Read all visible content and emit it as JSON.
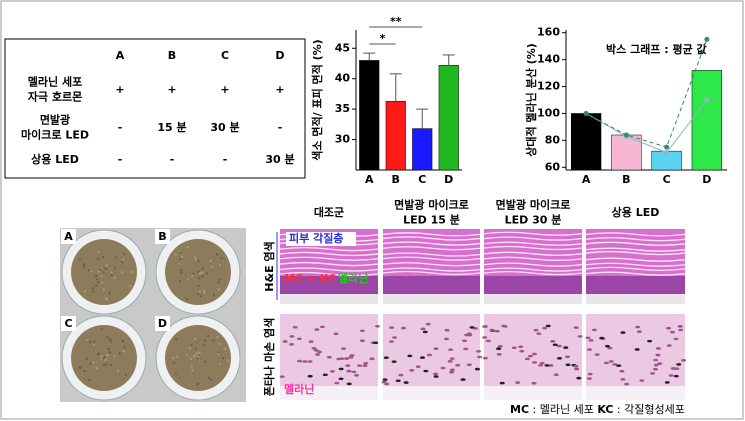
{
  "table": {
    "columns": [
      "A",
      "B",
      "C",
      "D"
    ],
    "rows": [
      {
        "label": [
          "멜라닌 세포",
          "자극 호르몬"
        ],
        "cells": [
          "+",
          "+",
          "+",
          "+"
        ]
      },
      {
        "label": [
          "면발광",
          "마이크로 LED"
        ],
        "cells": [
          "-",
          "15 분",
          "30 분",
          "-"
        ]
      },
      {
        "label": [
          "상용 LED"
        ],
        "cells": [
          "-",
          "-",
          "-",
          "30 분"
        ]
      }
    ]
  },
  "chart_data": [
    {
      "type": "bar",
      "y_label": "색소 면적/ 표피 면적 (%)",
      "categories": [
        "A",
        "B",
        "C",
        "D"
      ],
      "values": [
        43,
        36.3,
        31.8,
        42.2
      ],
      "errors": [
        1.2,
        4.5,
        3.2,
        1.7
      ],
      "colors": [
        "#000000",
        "#ff1a1a",
        "#1a1aff",
        "#1fb81f"
      ],
      "ylim": [
        25,
        48
      ],
      "yticks": [
        30,
        35,
        40,
        45
      ],
      "significance": [
        {
          "label": "*",
          "between": [
            "A",
            "B"
          ]
        },
        {
          "label": "**",
          "between": [
            "A",
            "C"
          ]
        }
      ]
    },
    {
      "type": "bar",
      "y_label": "상대적 멜라닌 분산 (%)",
      "annotation": "박스 그래프 : 평균 값",
      "categories": [
        "A",
        "B",
        "C",
        "D"
      ],
      "values": [
        100,
        84,
        72,
        132
      ],
      "colors": [
        "#000000",
        "#f7b7d3",
        "#5ad2f2",
        "#2ee84a"
      ],
      "ylim": [
        58,
        162
      ],
      "yticks": [
        60,
        80,
        100,
        120,
        140,
        160
      ],
      "overlays": [
        {
          "values": [
            100,
            83,
            71,
            110
          ],
          "dash": false,
          "color": "#8fb3cc"
        },
        {
          "values": [
            100,
            84,
            75,
            155
          ],
          "dash": true,
          "color": "#2f8a73"
        }
      ]
    }
  ],
  "photos": {
    "labels": [
      "A",
      "B",
      "C",
      "D"
    ]
  },
  "histology": {
    "columns": [
      [
        "대조군"
      ],
      [
        "면발광 마이크로",
        "LED 15 분"
      ],
      [
        "면발광 마이크로",
        "LED 30 분"
      ],
      [
        "상용 LED"
      ]
    ],
    "rows": [
      "H&E 염색",
      "폰타나 마손 염색"
    ],
    "annotations": {
      "stratum": "피부 각질층",
      "cells": "MC + KC",
      "melanin_he": "멜라닌",
      "melanin_fm": "멜라닌"
    },
    "footer": [
      "MC",
      " : 멜라닌 세포 ",
      "KC",
      " : 각질형성세포"
    ]
  }
}
